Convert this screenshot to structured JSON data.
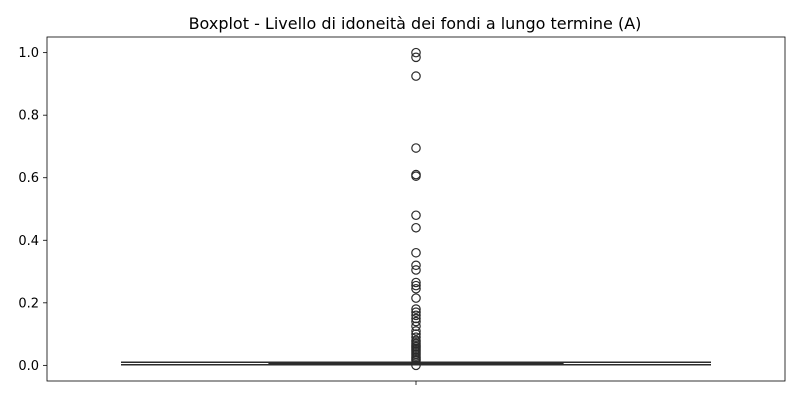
{
  "chart_data": {
    "type": "box",
    "title": "Boxplot - Livello di idoneità dei fondi a lungo termine (A)",
    "xlabel": "",
    "ylabel": "",
    "ylim": [
      -0.05,
      1.05
    ],
    "yticks": [
      0.0,
      0.2,
      0.4,
      0.6,
      0.8,
      1.0
    ],
    "ytick_labels": [
      "0.0",
      "0.2",
      "0.4",
      "0.6",
      "0.8",
      "1.0"
    ],
    "grid": false,
    "legend": "none",
    "colors": {
      "box_stroke": "#2b2b2b",
      "axes": "#000000",
      "background": "#ffffff"
    },
    "box": {
      "q1": 0.004,
      "median": 0.006,
      "q3": 0.008,
      "whisker_low": 0.002,
      "whisker_high": 0.01
    },
    "outliers": [
      1.0,
      0.985,
      0.925,
      0.695,
      0.61,
      0.605,
      0.48,
      0.44,
      0.36,
      0.32,
      0.305,
      0.265,
      0.255,
      0.245,
      0.215,
      0.18,
      0.17,
      0.16,
      0.15,
      0.14,
      0.125,
      0.11,
      0.1,
      0.09,
      0.08,
      0.075,
      0.07,
      0.065,
      0.06,
      0.055,
      0.05,
      0.045,
      0.04,
      0.035,
      0.03,
      0.025,
      0.02,
      0.015,
      0.0
    ]
  }
}
